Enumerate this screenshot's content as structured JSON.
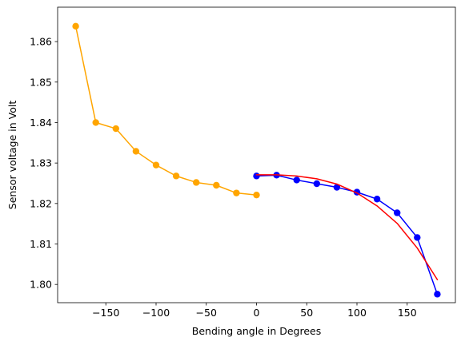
{
  "chart_data": {
    "type": "line",
    "title": "",
    "xlabel": "Bending angle in Degrees",
    "ylabel": "Sensor voltage in Volt",
    "xlim": [
      -198,
      198
    ],
    "ylim": [
      1.7955,
      1.8685
    ],
    "grid": false,
    "xticks": [
      -150,
      -100,
      -50,
      0,
      50,
      100,
      150
    ],
    "yticks": [
      1.8,
      1.81,
      1.82,
      1.83,
      1.84,
      1.85,
      1.86
    ],
    "xtick_labels": [
      "−150",
      "−100",
      "−50",
      "0",
      "50",
      "100",
      "150"
    ],
    "ytick_labels": [
      "1.80",
      "1.81",
      "1.82",
      "1.83",
      "1.84",
      "1.85",
      "1.86"
    ],
    "series": [
      {
        "color": "#ffa500",
        "marker": "circle",
        "x": [
          -180,
          -160,
          -140,
          -120,
          -100,
          -80,
          -60,
          -40,
          -20,
          0
        ],
        "y": [
          1.8638,
          1.84,
          1.8385,
          1.8329,
          1.8295,
          1.8268,
          1.8252,
          1.8245,
          1.8226,
          1.8221
        ]
      },
      {
        "color": "#0000ff",
        "marker": "circle",
        "x": [
          0,
          20,
          40,
          60,
          80,
          100,
          120,
          140,
          160,
          180
        ],
        "y": [
          1.8268,
          1.827,
          1.8258,
          1.8249,
          1.824,
          1.8228,
          1.8211,
          1.8177,
          1.8116,
          1.7976
        ]
      },
      {
        "color": "#ff0000",
        "marker": "none",
        "x": [
          0,
          20,
          40,
          60,
          80,
          100,
          120,
          140,
          160,
          180
        ],
        "y": [
          1.8271,
          1.8271,
          1.8268,
          1.8261,
          1.8248,
          1.8226,
          1.8194,
          1.8151,
          1.809,
          1.8012
        ]
      }
    ]
  }
}
